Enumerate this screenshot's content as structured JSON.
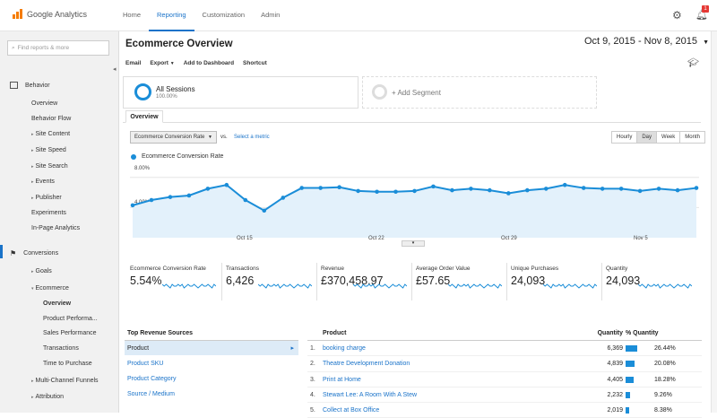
{
  "app": {
    "logo_text": "Google Analytics"
  },
  "nav": {
    "items": [
      "Home",
      "Reporting",
      "Customization",
      "Admin"
    ],
    "active": "Reporting"
  },
  "notifications": {
    "count": "1"
  },
  "sidebar": {
    "search_placeholder": "Find reports & more",
    "behavior": "Behavior",
    "behavior_items": [
      "Overview",
      "Behavior Flow",
      "Site Content",
      "Site Speed",
      "Site Search",
      "Events",
      "Publisher",
      "Experiments",
      "In-Page Analytics"
    ],
    "conversions": "Conversions",
    "goals": "Goals",
    "ecommerce": "Ecommerce",
    "ecommerce_items": [
      "Overview",
      "Product Performa...",
      "Sales Performance",
      "Transactions",
      "Time to Purchase"
    ],
    "multichannel": "Multi-Channel Funnels",
    "attribution": "Attribution"
  },
  "header": {
    "title": "Ecommerce Overview",
    "date_start": "Oct 9, 2015",
    "date_sep": "-",
    "date_end": "Nov 8, 2015"
  },
  "actions": [
    "Email",
    "Export",
    "Add to Dashboard",
    "Shortcut"
  ],
  "segments": {
    "active_label": "All Sessions",
    "active_pct": "100.00%",
    "add_label": "+ Add Segment"
  },
  "tabs": {
    "overview": "Overview"
  },
  "chart_controls": {
    "metric": "Ecommerce Conversion Rate",
    "vs": "vs.",
    "select_metric": "Select a metric",
    "granularity": [
      "Hourly",
      "Day",
      "Week",
      "Month"
    ],
    "active_granularity": "Day"
  },
  "chart_data": {
    "type": "area",
    "series": [
      {
        "name": "Ecommerce Conversion Rate",
        "values": [
          4.3,
          5.0,
          5.4,
          5.6,
          6.5,
          7.0,
          5.0,
          3.6,
          5.3,
          6.6,
          6.6,
          6.7,
          6.2,
          6.1,
          6.1,
          6.2,
          6.8,
          6.3,
          6.5,
          6.3,
          5.9,
          6.3,
          6.5,
          7.0,
          6.6,
          6.5,
          6.5,
          6.2,
          6.5,
          6.3,
          6.6
        ]
      }
    ],
    "x_tick_labels": [
      "Oct 15",
      "Oct 22",
      "Oct 29",
      "Nov 5"
    ],
    "y_tick_labels": [
      "8.00%",
      "4.00%"
    ],
    "ylim": [
      0,
      10
    ],
    "color": "#1a8dd8",
    "grid": true
  },
  "scorecards": [
    {
      "label": "Ecommerce Conversion Rate",
      "value": "5.54%"
    },
    {
      "label": "Transactions",
      "value": "6,426"
    },
    {
      "label": "Revenue",
      "value": "£370,458.97"
    },
    {
      "label": "Average Order Value",
      "value": "£57.65"
    },
    {
      "label": "Unique Purchases",
      "value": "24,093"
    },
    {
      "label": "Quantity",
      "value": "24,093"
    }
  ],
  "sources": {
    "header": "Top Revenue Sources",
    "items": [
      "Product",
      "Product SKU",
      "Product Category",
      "Source / Medium"
    ],
    "selected": "Product"
  },
  "products": {
    "headers": {
      "name": "Product",
      "qty": "Quantity",
      "pct": "% Quantity"
    },
    "rows": [
      {
        "num": "1.",
        "name": "booking charge",
        "qty": "6,369",
        "pct": "26.44%",
        "share": 26.44
      },
      {
        "num": "2.",
        "name": "Theatre Development Donation",
        "qty": "4,839",
        "pct": "20.08%",
        "share": 20.08
      },
      {
        "num": "3.",
        "name": "Print at Home",
        "qty": "4,405",
        "pct": "18.28%",
        "share": 18.28
      },
      {
        "num": "4.",
        "name": "Stewart Lee: A Room With A Stew",
        "qty": "2,232",
        "pct": "9.26%",
        "share": 9.26
      },
      {
        "num": "5.",
        "name": "Collect at Box Office",
        "qty": "2,019",
        "pct": "8.38%",
        "share": 8.38
      }
    ]
  },
  "colors": {
    "accent": "#1a73c9",
    "chart": "#1a8dd8",
    "brand": "#f57c00"
  }
}
